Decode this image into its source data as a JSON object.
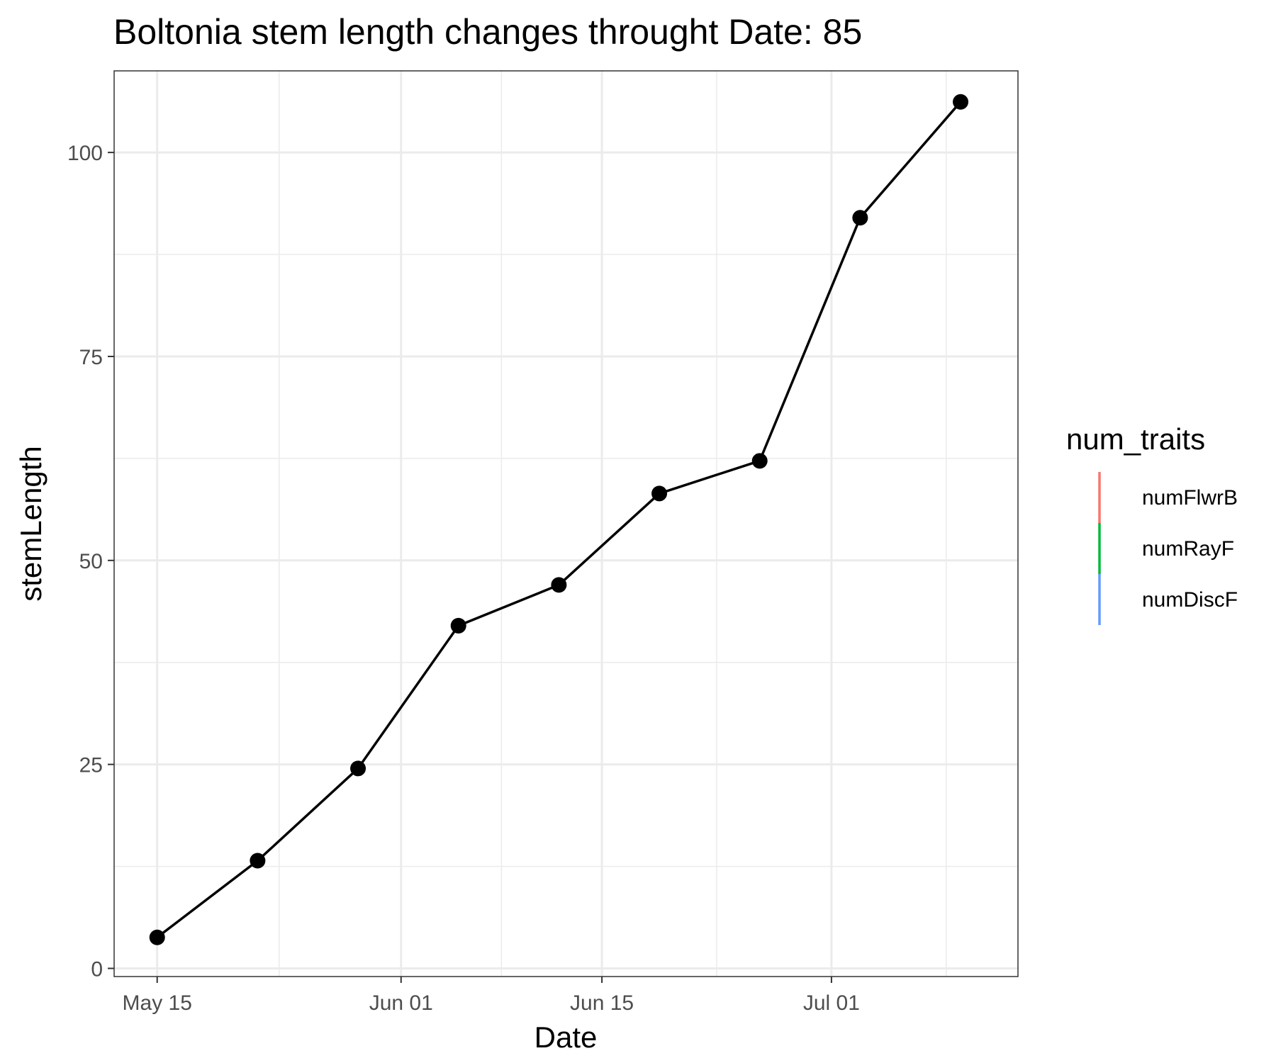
{
  "chart_data": {
    "type": "line",
    "title": "Boltonia stem length changes throught Date:  85",
    "xlabel": "Date",
    "ylabel": "stemLength",
    "x_ticks": [
      "May 15",
      "Jun 01",
      "Jun 15",
      "Jul 01"
    ],
    "y_ticks": [
      "0",
      "25",
      "50",
      "75",
      "100"
    ],
    "x_range": [
      "2023-05-12",
      "2023-07-14"
    ],
    "ylim": [
      -1,
      110
    ],
    "grid": true,
    "legend": {
      "title": "num_traits",
      "position": "right",
      "entries": [
        {
          "label": "numFlwrB",
          "color": "#F8766D"
        },
        {
          "label": "numRayF",
          "color": "#00BA38"
        },
        {
          "label": "numDiscF",
          "color": "#619CFF"
        }
      ]
    },
    "series": [
      {
        "color": "#000000",
        "points": [
          {
            "x": "2023-05-15",
            "y": 3.8
          },
          {
            "x": "2023-05-22",
            "y": 13.2
          },
          {
            "x": "2023-05-29",
            "y": 24.5
          },
          {
            "x": "2023-06-05",
            "y": 42
          },
          {
            "x": "2023-06-12",
            "y": 47
          },
          {
            "x": "2023-06-19",
            "y": 58.2
          },
          {
            "x": "2023-06-26",
            "y": 62.2
          },
          {
            "x": "2023-07-03",
            "y": 92
          },
          {
            "x": "2023-07-10",
            "y": 106.2
          }
        ]
      }
    ]
  }
}
